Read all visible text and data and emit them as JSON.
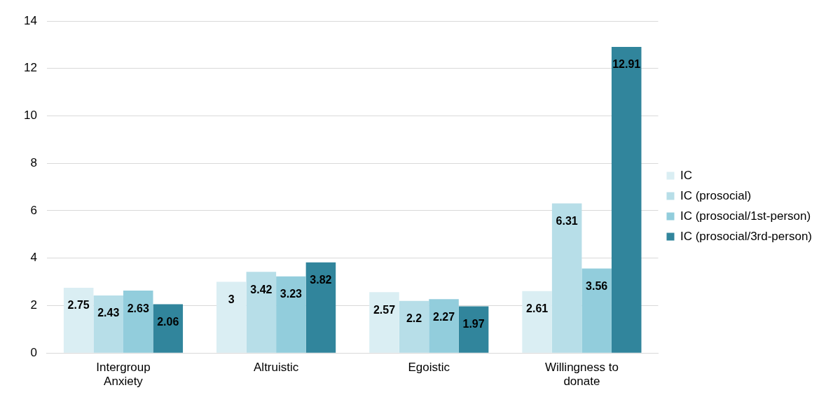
{
  "chart_data": {
    "type": "bar",
    "categories": [
      "Intergroup Anxiety",
      "Altruistic",
      "Egoistic",
      "Willingness to donate"
    ],
    "series": [
      {
        "name": "IC",
        "color": "#daeef3",
        "values": [
          2.75,
          3,
          2.57,
          2.61
        ]
      },
      {
        "name": "IC (prosocial)",
        "color": "#b7dee8",
        "values": [
          2.43,
          3.42,
          2.2,
          6.31
        ]
      },
      {
        "name": "IC (prosocial/1st-person)",
        "color": "#92cddc",
        "values": [
          2.63,
          3.23,
          2.27,
          3.56
        ]
      },
      {
        "name": "IC (prosocial/3rd-person)",
        "color": "#31859c",
        "values": [
          2.06,
          3.82,
          1.97,
          12.91
        ]
      }
    ],
    "ylim": [
      0,
      14
    ],
    "yticks": [
      0,
      2,
      4,
      6,
      8,
      10,
      12,
      14
    ],
    "grid": "y",
    "legend": "right",
    "data_labels": true
  }
}
